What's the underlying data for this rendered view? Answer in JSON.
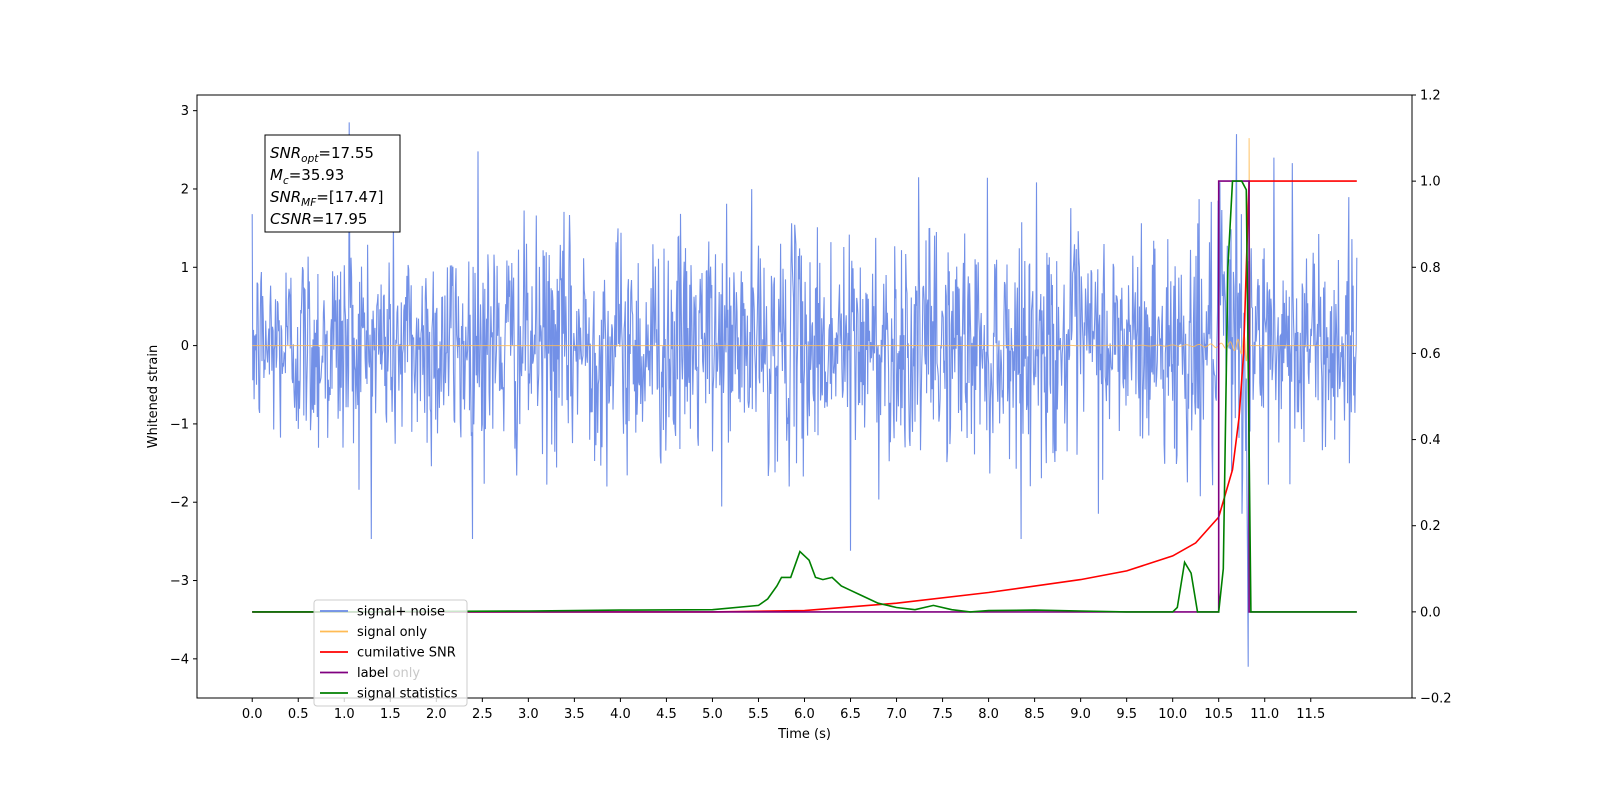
{
  "chart_data": {
    "type": "line",
    "xlabel": "Time (s)",
    "ylabel_left": "Whitened strain",
    "ylabel_right": "",
    "xlim": [
      -0.6,
      12.6
    ],
    "ylim_left": [
      -4.5,
      3.2
    ],
    "ylim_right": [
      -0.2,
      1.2
    ],
    "x_ticks": [
      0.0,
      0.5,
      1.0,
      1.5,
      2.0,
      2.5,
      3.0,
      3.5,
      4.0,
      4.5,
      5.0,
      5.5,
      6.0,
      6.5,
      7.0,
      7.5,
      8.0,
      8.5,
      9.0,
      9.5,
      10.0,
      10.5,
      11.0,
      11.5
    ],
    "x_tick_labels": [
      "0.0",
      "0.5",
      "1.0",
      "1.5",
      "2.0",
      "2.5",
      "3.0",
      "3.5",
      "4.0",
      "4.5",
      "5.0",
      "5.5",
      "6.0",
      "6.5",
      "7.0",
      "7.5",
      "8.0",
      "8.5",
      "9.0",
      "9.5",
      "10.0",
      "10.5",
      "11.0",
      "11.5"
    ],
    "y_left_ticks": [
      -4,
      -3,
      -2,
      -1,
      0,
      1,
      2,
      3
    ],
    "y_left_tick_labels": [
      "−4",
      "−3",
      "−2",
      "−1",
      "0",
      "1",
      "2",
      "3"
    ],
    "y_right_ticks": [
      -0.2,
      0.0,
      0.2,
      0.4,
      0.6,
      0.8,
      1.0,
      1.2
    ],
    "y_right_tick_labels": [
      "−0.2",
      "0.0",
      "0.2",
      "0.4",
      "0.6",
      "0.8",
      "1.0",
      "1.2"
    ],
    "grid": false,
    "legend_position": "lower-left",
    "series": [
      {
        "name": "signal+ noise",
        "axis": "left",
        "color": "#6a8ae6",
        "kind": "noise",
        "x_range": [
          0.0,
          12.0
        ],
        "envelope": [
          [
            0.0,
            1.1
          ],
          [
            1.0,
            1.3
          ],
          [
            2.0,
            1.3
          ],
          [
            3.0,
            1.3
          ],
          [
            4.0,
            1.3
          ],
          [
            5.0,
            1.3
          ],
          [
            6.0,
            1.3
          ],
          [
            7.0,
            1.3
          ],
          [
            8.0,
            1.3
          ],
          [
            9.0,
            1.3
          ],
          [
            10.0,
            1.3
          ],
          [
            10.5,
            1.5
          ],
          [
            10.8,
            2.6
          ],
          [
            10.85,
            1.3
          ],
          [
            12.0,
            1.1
          ]
        ],
        "spikes": [
          [
            1.05,
            2.85
          ],
          [
            2.45,
            2.48
          ],
          [
            6.5,
            -2.62
          ],
          [
            8.65,
            2.4
          ],
          [
            10.82,
            -4.1
          ],
          [
            10.85,
            2.6
          ],
          [
            11.1,
            2.4
          ],
          [
            11.3,
            2.33
          ]
        ]
      },
      {
        "name": "signal only",
        "axis": "left",
        "color": "#ffbb55",
        "kind": "chirp",
        "x_range": [
          0.0,
          10.83
        ],
        "merger_time": 10.83,
        "peak_amplitude": 2.65,
        "after_merger": 0.0
      },
      {
        "name": "cumilative SNR",
        "axis": "right",
        "color": "#ff0000",
        "points": [
          [
            0.0,
            0.0
          ],
          [
            5.0,
            0.0
          ],
          [
            6.0,
            0.003
          ],
          [
            7.0,
            0.02
          ],
          [
            8.0,
            0.045
          ],
          [
            9.0,
            0.075
          ],
          [
            9.5,
            0.095
          ],
          [
            10.0,
            0.13
          ],
          [
            10.25,
            0.16
          ],
          [
            10.5,
            0.22
          ],
          [
            10.65,
            0.33
          ],
          [
            10.72,
            0.45
          ],
          [
            10.77,
            0.6
          ],
          [
            10.8,
            0.8
          ],
          [
            10.83,
            1.0
          ],
          [
            11.0,
            1.0
          ],
          [
            12.0,
            1.0
          ]
        ]
      },
      {
        "name": "label",
        "axis": "right",
        "color": "#800080",
        "points": [
          [
            0.0,
            0.0
          ],
          [
            10.5,
            0.0
          ],
          [
            10.5,
            1.0
          ],
          [
            10.83,
            1.0
          ],
          [
            10.83,
            0.0
          ],
          [
            12.0,
            0.0
          ]
        ]
      },
      {
        "name": "signal statistics",
        "axis": "right",
        "color": "#008000",
        "points": [
          [
            0.0,
            0.0
          ],
          [
            1.0,
            0.0
          ],
          [
            2.0,
            0.001
          ],
          [
            3.0,
            0.002
          ],
          [
            4.0,
            0.004
          ],
          [
            5.0,
            0.005
          ],
          [
            5.5,
            0.015
          ],
          [
            5.6,
            0.03
          ],
          [
            5.7,
            0.06
          ],
          [
            5.75,
            0.08
          ],
          [
            5.85,
            0.08
          ],
          [
            5.95,
            0.14
          ],
          [
            6.05,
            0.12
          ],
          [
            6.12,
            0.08
          ],
          [
            6.2,
            0.075
          ],
          [
            6.3,
            0.08
          ],
          [
            6.4,
            0.06
          ],
          [
            6.5,
            0.05
          ],
          [
            6.6,
            0.04
          ],
          [
            6.8,
            0.02
          ],
          [
            7.0,
            0.01
          ],
          [
            7.2,
            0.005
          ],
          [
            7.4,
            0.015
          ],
          [
            7.6,
            0.005
          ],
          [
            7.8,
            0.0
          ],
          [
            8.0,
            0.003
          ],
          [
            8.5,
            0.004
          ],
          [
            9.0,
            0.002
          ],
          [
            9.5,
            0.0
          ],
          [
            10.0,
            0.0
          ],
          [
            10.05,
            0.01
          ],
          [
            10.13,
            0.115
          ],
          [
            10.2,
            0.09
          ],
          [
            10.27,
            0.0
          ],
          [
            10.5,
            0.0
          ],
          [
            10.55,
            0.1
          ],
          [
            10.6,
            0.8
          ],
          [
            10.65,
            1.0
          ],
          [
            10.75,
            1.0
          ],
          [
            10.8,
            0.98
          ],
          [
            10.85,
            0.0
          ],
          [
            11.0,
            0.0
          ],
          [
            12.0,
            0.0
          ]
        ]
      }
    ],
    "legend": [
      {
        "label": "signal+ noise",
        "color": "#6a8ae6"
      },
      {
        "label": "signal only",
        "color": "#ffbb55"
      },
      {
        "label": "cumilative SNR",
        "color": "#ff0000"
      },
      {
        "label": "label",
        "color": "#800080"
      },
      {
        "label": "signal statistics",
        "color": "#008000"
      }
    ],
    "legend_ghost_text": [
      "label only"
    ],
    "annotation_box": {
      "lines": [
        {
          "base": "SNR",
          "sub": "opt",
          "text": "=17.55"
        },
        {
          "base": "M",
          "sub": "c",
          "text": "=35.93"
        },
        {
          "base": "SNR",
          "sub": "MF",
          "text": "=[17.47]"
        },
        {
          "base": "CSNR",
          "sub": "",
          "text": "=17.95"
        }
      ]
    }
  }
}
